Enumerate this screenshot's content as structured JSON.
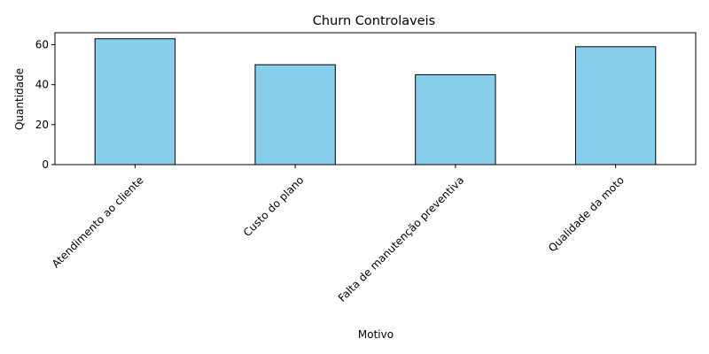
{
  "chart_data": {
    "type": "bar",
    "title": "Churn Controlaveis",
    "xlabel": "Motivo",
    "ylabel": "Quantidade",
    "categories": [
      "Atendimento ao cliente",
      "Custo do plano",
      "Falta de manutenção preventiva",
      "Qualidade da moto"
    ],
    "values": [
      63,
      50,
      45,
      59
    ],
    "ylim": [
      0,
      66
    ],
    "yticks": [
      0,
      20,
      40,
      60
    ],
    "bar_color": "#87CEEB",
    "bar_edge_color": "#000000",
    "grid": false,
    "legend": "none"
  }
}
